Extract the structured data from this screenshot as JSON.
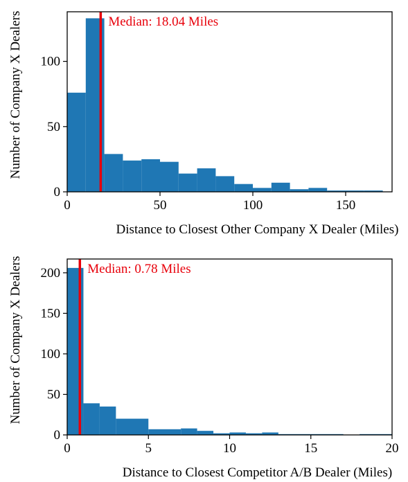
{
  "chart_data": [
    {
      "type": "bar",
      "subtype": "histogram",
      "xlabel": "Distance to Closest Other Company X Dealer (Miles)",
      "ylabel": "Number of Company X Dealers",
      "xlim": [
        0,
        175
      ],
      "ylim": [
        0,
        138
      ],
      "xticks": [
        0,
        50,
        100,
        150
      ],
      "yticks": [
        0,
        50,
        100
      ],
      "bar_color": "#1f77b4",
      "bins": [
        {
          "x0": 0,
          "x1": 10,
          "value": 76
        },
        {
          "x0": 10,
          "x1": 20,
          "value": 133
        },
        {
          "x0": 20,
          "x1": 30,
          "value": 29
        },
        {
          "x0": 30,
          "x1": 40,
          "value": 24
        },
        {
          "x0": 40,
          "x1": 50,
          "value": 25
        },
        {
          "x0": 50,
          "x1": 60,
          "value": 23
        },
        {
          "x0": 60,
          "x1": 70,
          "value": 14
        },
        {
          "x0": 70,
          "x1": 80,
          "value": 18
        },
        {
          "x0": 80,
          "x1": 90,
          "value": 12
        },
        {
          "x0": 90,
          "x1": 100,
          "value": 6
        },
        {
          "x0": 100,
          "x1": 110,
          "value": 3
        },
        {
          "x0": 110,
          "x1": 120,
          "value": 7
        },
        {
          "x0": 120,
          "x1": 130,
          "value": 2
        },
        {
          "x0": 130,
          "x1": 140,
          "value": 3
        },
        {
          "x0": 140,
          "x1": 150,
          "value": 1
        },
        {
          "x0": 150,
          "x1": 160,
          "value": 1
        },
        {
          "x0": 160,
          "x1": 170,
          "value": 1
        }
      ],
      "median": {
        "value": 18.04,
        "label": "Median: 18.04 Miles",
        "color": "#e8000b"
      }
    },
    {
      "type": "bar",
      "subtype": "histogram",
      "xlabel": "Distance to Closest Competitor A/B Dealer (Miles)",
      "ylabel": "Number of Company X Dealers",
      "xlim": [
        0,
        20
      ],
      "ylim": [
        0,
        217
      ],
      "xticks": [
        0,
        5,
        10,
        15,
        20
      ],
      "yticks": [
        0,
        50,
        100,
        150,
        200
      ],
      "bar_color": "#1f77b4",
      "bins": [
        {
          "x0": 0,
          "x1": 1,
          "value": 206
        },
        {
          "x0": 1,
          "x1": 2,
          "value": 39
        },
        {
          "x0": 2,
          "x1": 3,
          "value": 35
        },
        {
          "x0": 3,
          "x1": 5,
          "value": 20
        },
        {
          "x0": 5,
          "x1": 7,
          "value": 7
        },
        {
          "x0": 7,
          "x1": 8,
          "value": 8
        },
        {
          "x0": 8,
          "x1": 9,
          "value": 5
        },
        {
          "x0": 9,
          "x1": 10,
          "value": 2
        },
        {
          "x0": 10,
          "x1": 11,
          "value": 3
        },
        {
          "x0": 11,
          "x1": 12,
          "value": 2
        },
        {
          "x0": 12,
          "x1": 13,
          "value": 3
        },
        {
          "x0": 13,
          "x1": 15,
          "value": 1
        },
        {
          "x0": 15,
          "x1": 17,
          "value": 1
        },
        {
          "x0": 17,
          "x1": 18,
          "value": 0
        },
        {
          "x0": 18,
          "x1": 20,
          "value": 1
        }
      ],
      "median": {
        "value": 0.78,
        "label": "Median: 0.78 Miles",
        "color": "#e8000b"
      }
    }
  ]
}
